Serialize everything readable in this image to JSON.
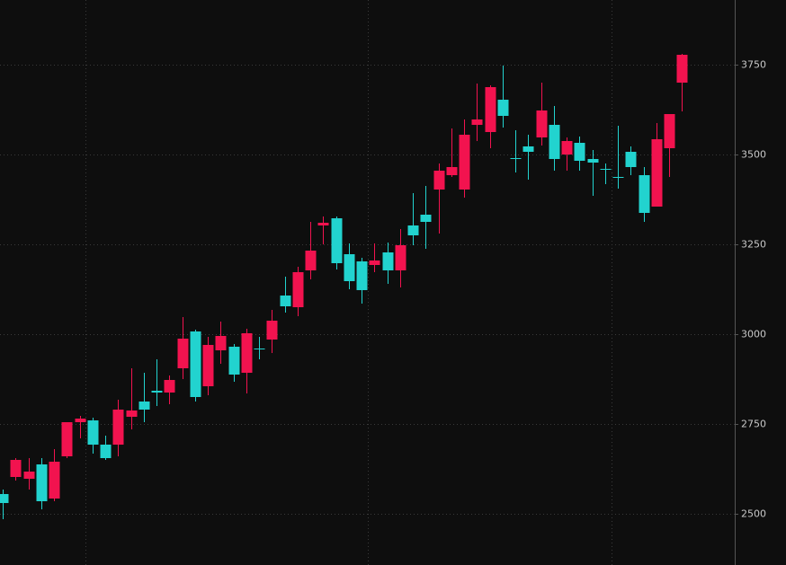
{
  "chart_data": {
    "type": "candlestick",
    "up_color": "#f2134f",
    "down_color": "#22d3cf",
    "ylim": [
      2357.5,
      3930
    ],
    "yticks": [
      2500,
      2750,
      3000,
      3250,
      3500,
      3750
    ],
    "grid": true,
    "open": [
      2555,
      2602.5,
      2597.5,
      2637.5,
      2542.5,
      2660,
      2755,
      2760,
      2692.5,
      2692.5,
      2770,
      2812.5,
      2842.5,
      2837.5,
      2905,
      3007.5,
      2855,
      2955,
      2965,
      2892.5,
      2960,
      2985,
      3107.5,
      3075,
      3177.5,
      3302.5,
      3322.5,
      3222.5,
      3202.5,
      3192.5,
      3227.5,
      3177.5,
      3302.5,
      3332.5,
      3402.5,
      3442.5,
      3402.5,
      3582.5,
      3562.5,
      3652.5,
      3490,
      3522.5,
      3547.5,
      3582.5,
      3500,
      3532.5,
      3487.5,
      3460,
      3437.5,
      3507.5,
      3442.5,
      3355,
      3517.5,
      3700
    ],
    "high": [
      2567.5,
      2655,
      2655,
      2655,
      2680,
      2755,
      2772.5,
      2767.5,
      2717.5,
      2817.5,
      2905,
      2892.5,
      2930,
      2885,
      3047.5,
      3012.5,
      2992.5,
      3035,
      2972.5,
      3015,
      2992.5,
      3067.5,
      3160,
      3187.5,
      3312.5,
      3327.5,
      3327.5,
      3252.5,
      3212.5,
      3252.5,
      3255,
      3292.5,
      3392.5,
      3412.5,
      3475,
      3572.5,
      3597.5,
      3697.5,
      3692.5,
      3747.5,
      3567.5,
      3555,
      3700,
      3635,
      3547.5,
      3550,
      3512.5,
      3475,
      3580,
      3522.5,
      3465,
      3587.5,
      3612.5,
      3780
    ],
    "low": [
      2485,
      2592.5,
      2567.5,
      2512.5,
      2535,
      2655,
      2710,
      2667.5,
      2650,
      2660,
      2735,
      2755,
      2800,
      2805,
      2875,
      2812.5,
      2830,
      2917.5,
      2867.5,
      2835,
      2930,
      2947.5,
      3060,
      3050,
      3152.5,
      3250,
      3180,
      3125,
      3085,
      3172.5,
      3140,
      3130,
      3247.5,
      3237.5,
      3280,
      3437.5,
      3380,
      3537.5,
      3517.5,
      3575,
      3450,
      3430,
      3525,
      3455,
      3455,
      3455,
      3385,
      3417.5,
      3405,
      3442.5,
      3312.5,
      3355,
      3437.5,
      3620
    ],
    "close": [
      2530,
      2650,
      2617.5,
      2535,
      2645,
      2755,
      2765,
      2692.5,
      2655,
      2790,
      2787.5,
      2790,
      2837.5,
      2872.5,
      2987.5,
      2825,
      2970,
      2995,
      2887.5,
      3002.5,
      2957.5,
      3037.5,
      3077.5,
      3172.5,
      3232.5,
      3310,
      3197.5,
      3147.5,
      3122.5,
      3205,
      3177.5,
      3247.5,
      3275,
      3312.5,
      3455,
      3465,
      3555,
      3597.5,
      3687.5,
      3607.5,
      3487.5,
      3507.5,
      3622.5,
      3487.5,
      3537.5,
      3482.5,
      3477.5,
      3457.5,
      3435,
      3465,
      3337.5,
      3542.5,
      3612.5,
      3777.5
    ]
  }
}
